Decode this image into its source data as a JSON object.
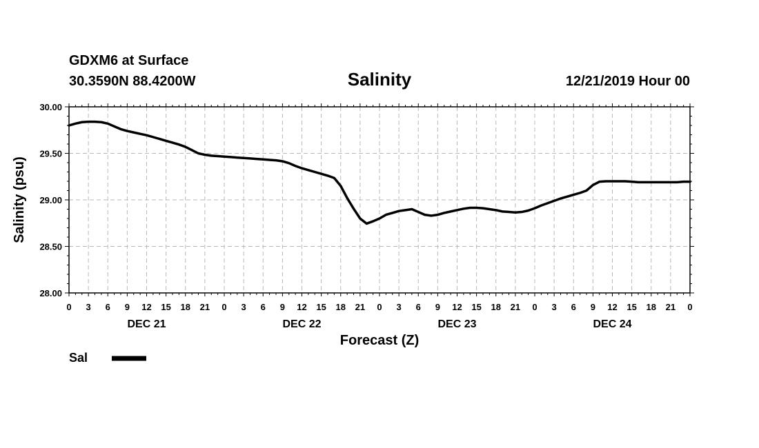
{
  "header": {
    "station": "GDXM6 at Surface",
    "location": "30.3590N 88.4200W",
    "title": "Salinity",
    "run": "12/21/2019 Hour 00"
  },
  "legend": {
    "label": "Sal",
    "color": "#000000"
  },
  "chart_data": {
    "type": "line",
    "title": "Salinity",
    "xlabel": "Forecast (Z)",
    "ylabel": "Salinity (psu)",
    "xlim": [
      0,
      96
    ],
    "ylim": [
      28.0,
      30.0
    ],
    "yticks": [
      28.0,
      28.5,
      29.0,
      29.5,
      30.0
    ],
    "ytick_labels": [
      "28.00",
      "28.50",
      "29.00",
      "29.50",
      "30.00"
    ],
    "xtick_labels": [
      "0",
      "3",
      "6",
      "9",
      "12",
      "15",
      "18",
      "21",
      "0",
      "3",
      "6",
      "9",
      "12",
      "15",
      "18",
      "21",
      "0",
      "3",
      "6",
      "9",
      "12",
      "15",
      "18",
      "21",
      "0",
      "3",
      "6",
      "9",
      "12",
      "15",
      "18",
      "21",
      "0"
    ],
    "day_labels": [
      {
        "label": "DEC 21",
        "hour": 12
      },
      {
        "label": "DEC 22",
        "hour": 36
      },
      {
        "label": "DEC 23",
        "hour": 60
      },
      {
        "label": "DEC 24",
        "hour": 84
      }
    ],
    "grid": true,
    "legend_position": "bottom-left",
    "series": [
      {
        "name": "Sal",
        "color": "#000000",
        "x": [
          0,
          1,
          2,
          3,
          4,
          5,
          6,
          7,
          8,
          9,
          10,
          11,
          12,
          13,
          14,
          15,
          16,
          17,
          18,
          19,
          20,
          21,
          22,
          23,
          24,
          25,
          26,
          27,
          28,
          29,
          30,
          31,
          32,
          33,
          34,
          35,
          36,
          37,
          38,
          39,
          40,
          41,
          42,
          43,
          44,
          45,
          46,
          47,
          48,
          49,
          50,
          51,
          52,
          53,
          54,
          55,
          56,
          57,
          58,
          59,
          60,
          61,
          62,
          63,
          64,
          65,
          66,
          67,
          68,
          69,
          70,
          71,
          72,
          73,
          74,
          75,
          76,
          77,
          78,
          79,
          80,
          81,
          82,
          83,
          84,
          85,
          86,
          87,
          88,
          89,
          90,
          91,
          92,
          93,
          94,
          95,
          96
        ],
        "values": [
          29.8,
          29.82,
          29.835,
          29.84,
          29.84,
          29.835,
          29.82,
          29.79,
          29.76,
          29.74,
          29.725,
          29.71,
          29.695,
          29.675,
          29.655,
          29.635,
          29.615,
          29.595,
          29.57,
          29.535,
          29.5,
          29.485,
          29.475,
          29.47,
          29.465,
          29.46,
          29.455,
          29.45,
          29.445,
          29.44,
          29.435,
          29.43,
          29.425,
          29.415,
          29.395,
          29.365,
          29.34,
          29.32,
          29.3,
          29.28,
          29.26,
          29.235,
          29.15,
          29.02,
          28.905,
          28.8,
          28.745,
          28.77,
          28.8,
          28.84,
          28.86,
          28.88,
          28.89,
          28.9,
          28.87,
          28.84,
          28.83,
          28.84,
          28.86,
          28.875,
          28.89,
          28.905,
          28.915,
          28.915,
          28.91,
          28.9,
          28.89,
          28.875,
          28.87,
          28.865,
          28.87,
          28.885,
          28.91,
          28.94,
          28.965,
          28.99,
          29.015,
          29.035,
          29.055,
          29.075,
          29.1,
          29.16,
          29.195,
          29.2,
          29.2,
          29.2,
          29.2,
          29.195,
          29.19,
          29.19,
          29.19,
          29.19,
          29.19,
          29.19,
          29.19,
          29.195,
          29.195
        ]
      }
    ]
  }
}
